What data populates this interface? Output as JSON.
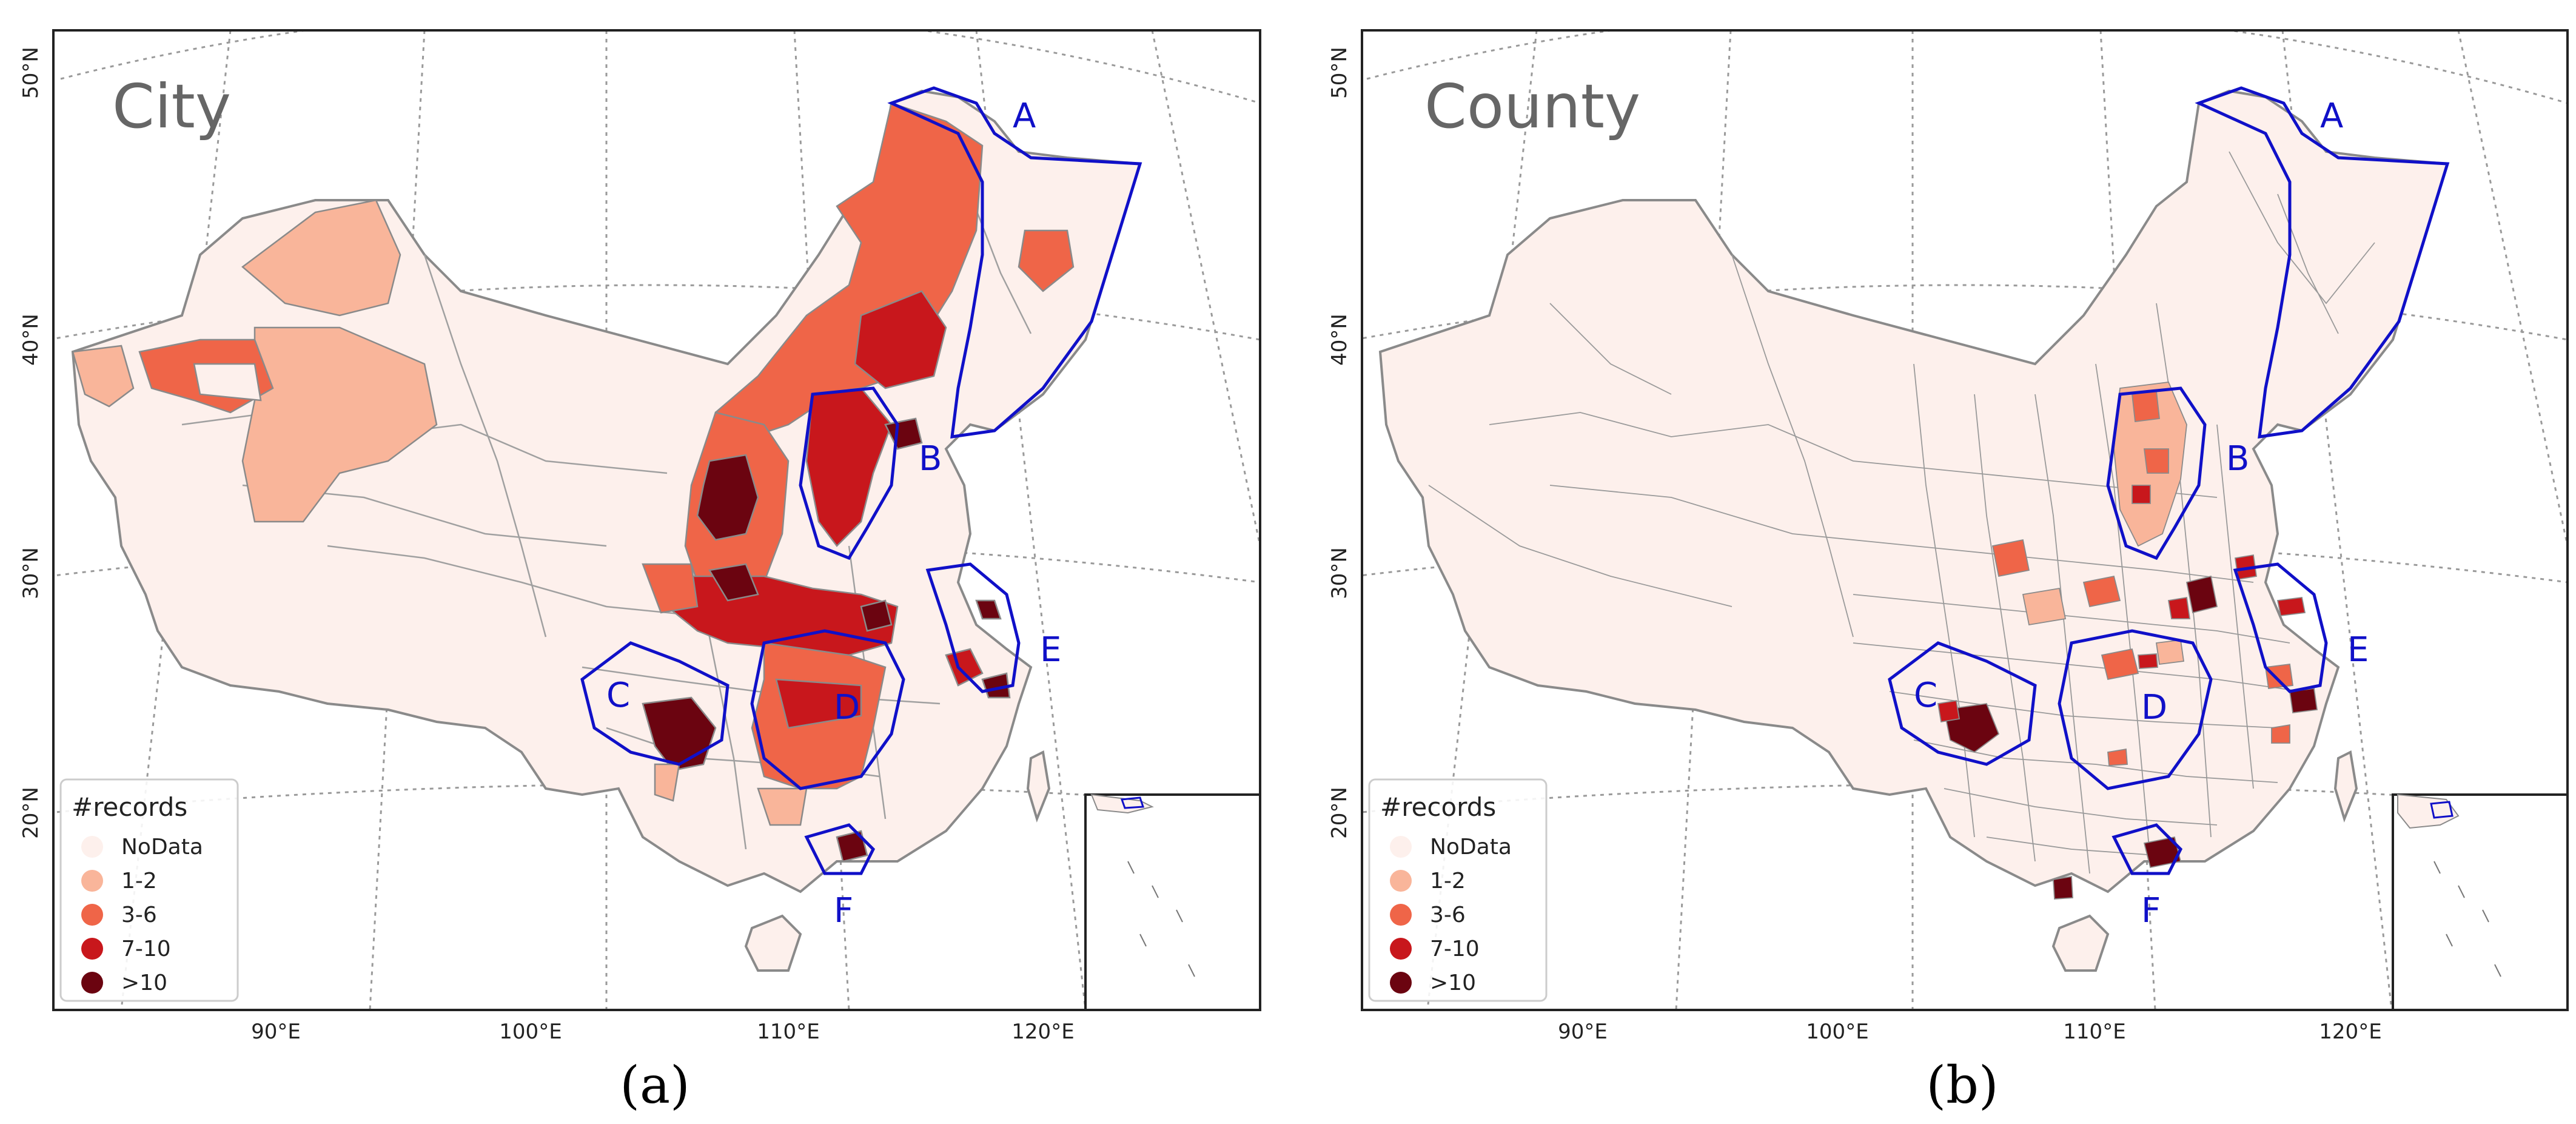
{
  "panels": [
    {
      "id": "a",
      "title": "City",
      "caption": "(a)",
      "x_ticks": [
        "90°E",
        "100°E",
        "110°E",
        "120°E"
      ],
      "y_ticks": [
        "50°N",
        "40°N",
        "30°N",
        "20°N"
      ],
      "region_labels": [
        "A",
        "B",
        "C",
        "D",
        "E",
        "F"
      ],
      "legend": {
        "title": "#records",
        "items": [
          {
            "label": "NoData",
            "color": "#fdf0ec"
          },
          {
            "label": "1-2",
            "color": "#f9b59a"
          },
          {
            "label": "3-6",
            "color": "#ef6548"
          },
          {
            "label": "7-10",
            "color": "#c8171c"
          },
          {
            "label": ">10",
            "color": "#6b0410"
          }
        ]
      }
    },
    {
      "id": "b",
      "title": "County",
      "caption": "(b)",
      "x_ticks": [
        "90°E",
        "100°E",
        "110°E",
        "120°E"
      ],
      "y_ticks": [
        "50°N",
        "40°N",
        "30°N",
        "20°N"
      ],
      "region_labels": [
        "A",
        "B",
        "C",
        "D",
        "E",
        "F"
      ],
      "legend": {
        "title": "#records",
        "items": [
          {
            "label": "NoData",
            "color": "#fdf0ec"
          },
          {
            "label": "1-2",
            "color": "#f9b59a"
          },
          {
            "label": "3-6",
            "color": "#ef6548"
          },
          {
            "label": "7-10",
            "color": "#c8171c"
          },
          {
            "label": ">10",
            "color": "#6b0410"
          }
        ]
      }
    }
  ],
  "colors": {
    "nodata": "#fdf0ec",
    "c1": "#f9b59a",
    "c2": "#ef6548",
    "c3": "#c8171c",
    "c4": "#6b0410",
    "region_border": "#1010c8",
    "admin_border": "#8a8a8a",
    "title_text": "#666666"
  }
}
